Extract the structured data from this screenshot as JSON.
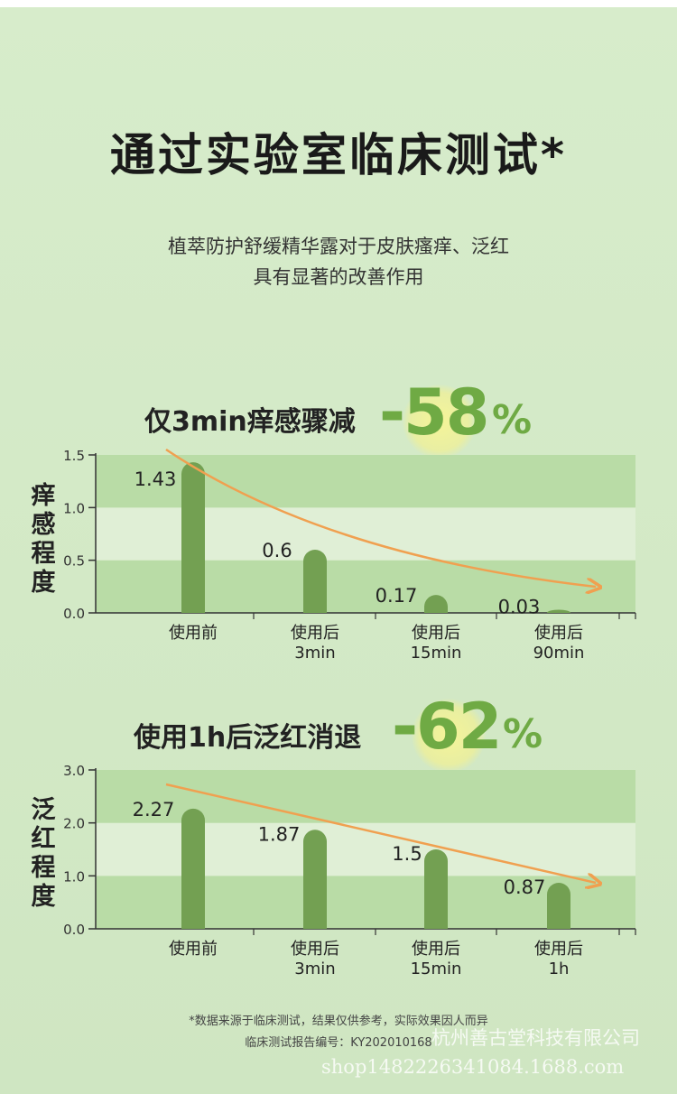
{
  "title": "通过实验室临床测试*",
  "subtitle_lines": [
    "植萃防护舒缓精华露对于皮肤瘙痒、泛红",
    "具有显著的改善作用"
  ],
  "chart_data": [
    {
      "type": "bar",
      "headline": "仅3min痒感骤减",
      "headline_value": "-58",
      "headline_unit": "%",
      "ylabel": "痒感程度",
      "ylim": [
        0,
        1.5
      ],
      "yticks": [
        "0.0",
        "0.5",
        "1.0",
        "1.5"
      ],
      "ytick_values": [
        0,
        0.5,
        1.0,
        1.5
      ],
      "categories": [
        [
          "使用前"
        ],
        [
          "使用后",
          "3min"
        ],
        [
          "使用后",
          "15min"
        ],
        [
          "使用后",
          "90min"
        ]
      ],
      "values": [
        1.43,
        0.6,
        0.17,
        0.03
      ],
      "data_labels": [
        "1.43",
        "0.6",
        "0.17",
        "0.03"
      ]
    },
    {
      "type": "bar",
      "headline": "使用1h后泛红消退",
      "headline_value": "-62",
      "headline_unit": "%",
      "ylabel": "泛红程度",
      "ylim": [
        0,
        3.0
      ],
      "yticks": [
        "0.0",
        "1.0",
        "2.0",
        "3.0"
      ],
      "ytick_values": [
        0,
        1.0,
        2.0,
        3.0
      ],
      "categories": [
        [
          "使用前"
        ],
        [
          "使用后",
          "3min"
        ],
        [
          "使用后",
          "15min"
        ],
        [
          "使用后",
          "1h"
        ]
      ],
      "values": [
        2.27,
        1.87,
        1.5,
        0.87
      ],
      "data_labels": [
        "2.27",
        "1.87",
        "1.5",
        "0.87"
      ]
    }
  ],
  "footnote_lines": [
    "*数据来源于临床测试，结果仅供参考，实际效果因人而异",
    "临床测试报告编号：KY202010168"
  ],
  "watermarks": [
    "杭州善古堂科技有限公司",
    "shop1482226341084.1688.com"
  ],
  "colors": {
    "bar": "#73a052",
    "band_dark": "#b9dca6",
    "band_light": "#e0efd6",
    "trend_arrow": "#f0a050",
    "accent": "#6faa44"
  }
}
